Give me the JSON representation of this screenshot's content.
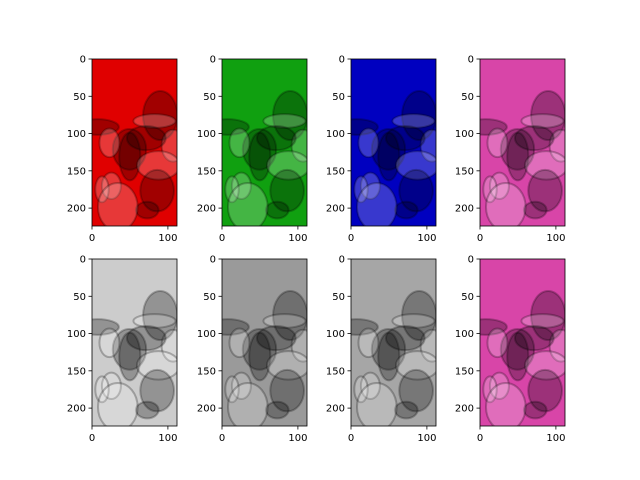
{
  "chart_data": [
    {
      "type": "image",
      "channel": "red",
      "xticks": [
        0,
        100
      ],
      "yticks": [
        0,
        50,
        100,
        150,
        200
      ],
      "xlim": [
        0,
        112
      ],
      "ylim": [
        224,
        0
      ],
      "tint": "#e00000"
    },
    {
      "type": "image",
      "channel": "green",
      "xticks": [
        0,
        100
      ],
      "yticks": [
        0,
        50,
        100,
        150,
        200
      ],
      "xlim": [
        0,
        112
      ],
      "ylim": [
        224,
        0
      ],
      "tint": "#10a010"
    },
    {
      "type": "image",
      "channel": "blue",
      "xticks": [
        0,
        100
      ],
      "yticks": [
        0,
        50,
        100,
        150,
        200
      ],
      "xlim": [
        0,
        112
      ],
      "ylim": [
        224,
        0
      ],
      "tint": "#0000c0"
    },
    {
      "type": "image",
      "channel": "rgb",
      "xticks": [
        0,
        100
      ],
      "yticks": [
        0,
        50,
        100,
        150,
        200
      ],
      "xlim": [
        0,
        112
      ],
      "ylim": [
        224,
        0
      ],
      "tint": "#d845a8"
    },
    {
      "type": "image",
      "channel": "red-gray",
      "xticks": [
        0,
        100
      ],
      "yticks": [
        0,
        50,
        100,
        150,
        200
      ],
      "xlim": [
        0,
        112
      ],
      "ylim": [
        224,
        0
      ],
      "tint": "#cccccc"
    },
    {
      "type": "image",
      "channel": "green-gray",
      "xticks": [
        0,
        100
      ],
      "yticks": [
        0,
        50,
        100,
        150,
        200
      ],
      "xlim": [
        0,
        112
      ],
      "ylim": [
        224,
        0
      ],
      "tint": "#9a9a9a"
    },
    {
      "type": "image",
      "channel": "blue-gray",
      "xticks": [
        0,
        100
      ],
      "yticks": [
        0,
        50,
        100,
        150,
        200
      ],
      "xlim": [
        0,
        112
      ],
      "ylim": [
        224,
        0
      ],
      "tint": "#a6a6a6"
    },
    {
      "type": "image",
      "channel": "rgb-2",
      "xticks": [
        0,
        100
      ],
      "yticks": [
        0,
        50,
        100,
        150,
        200
      ],
      "xlim": [
        0,
        112
      ],
      "ylim": [
        224,
        0
      ],
      "tint": "#d845a8"
    }
  ]
}
